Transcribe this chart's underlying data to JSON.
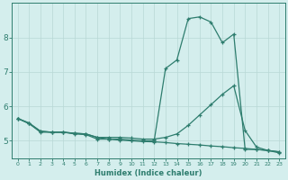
{
  "xlabel": "Humidex (Indice chaleur)",
  "bg_color": "#d4eeed",
  "line_color": "#2e7d6e",
  "grid_color": "#b8d8d5",
  "xlim": [
    -0.5,
    23.5
  ],
  "ylim": [
    4.5,
    9.0
  ],
  "yticks": [
    5,
    6,
    7,
    8
  ],
  "xticks": [
    0,
    1,
    2,
    3,
    4,
    5,
    6,
    7,
    8,
    9,
    10,
    11,
    12,
    13,
    14,
    15,
    16,
    17,
    18,
    19,
    20,
    21,
    22,
    23
  ],
  "line1_x": [
    0,
    1,
    2,
    3,
    4,
    5,
    6,
    7,
    8,
    9,
    10,
    11,
    12,
    13,
    14,
    15,
    16,
    17,
    18,
    19,
    20,
    21,
    22,
    23
  ],
  "line1_y": [
    5.65,
    5.5,
    5.25,
    5.25,
    5.25,
    5.2,
    5.18,
    5.05,
    5.05,
    5.05,
    5.02,
    5.0,
    5.0,
    7.1,
    7.35,
    8.55,
    8.6,
    8.45,
    7.85,
    8.1,
    4.75,
    4.75,
    4.72,
    4.68
  ],
  "line2_x": [
    0,
    1,
    2,
    3,
    4,
    5,
    6,
    7,
    8,
    9,
    10,
    11,
    12,
    13,
    14,
    15,
    16,
    17,
    18,
    19,
    20,
    21,
    22,
    23
  ],
  "line2_y": [
    5.65,
    5.5,
    5.28,
    5.25,
    5.25,
    5.22,
    5.2,
    5.1,
    5.1,
    5.1,
    5.08,
    5.05,
    5.05,
    5.1,
    5.2,
    5.45,
    5.75,
    6.05,
    6.35,
    6.6,
    5.3,
    4.82,
    4.72,
    4.65
  ],
  "line3_x": [
    0,
    1,
    2,
    3,
    4,
    5,
    6,
    7,
    8,
    9,
    10,
    11,
    12,
    13,
    14,
    15,
    16,
    17,
    18,
    19,
    20,
    21,
    22,
    23
  ],
  "line3_y": [
    5.65,
    5.52,
    5.28,
    5.25,
    5.25,
    5.22,
    5.2,
    5.1,
    5.05,
    5.02,
    5.0,
    4.98,
    4.97,
    4.95,
    4.92,
    4.9,
    4.88,
    4.85,
    4.83,
    4.8,
    4.78,
    4.75,
    4.72,
    4.68
  ]
}
